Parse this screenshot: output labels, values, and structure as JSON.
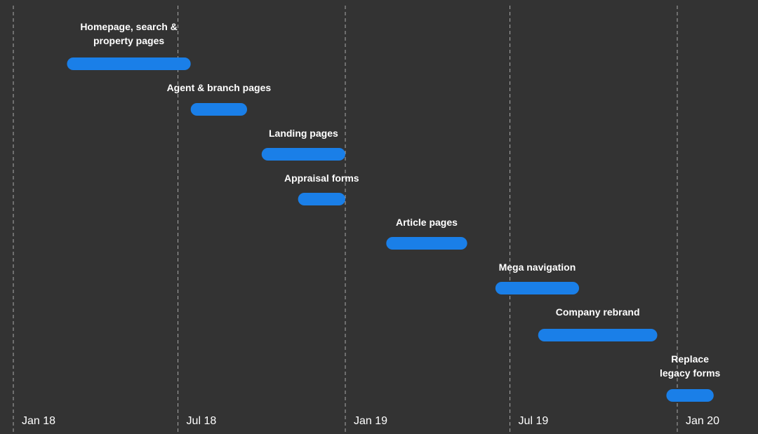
{
  "colors": {
    "background": "#333333",
    "bar": "#1a7fe8",
    "gridline": "#cfcfcf",
    "text": "#ffffff"
  },
  "chart_data": {
    "type": "gantt",
    "title": "",
    "xlabel": "",
    "ylabel": "",
    "x_axis": {
      "type": "date",
      "range": [
        "2017-11-15",
        "2020-03-01"
      ],
      "ticks": [
        {
          "label": "Jan 18",
          "date": "2018-01-01"
        },
        {
          "label": "Jul 18",
          "date": "2018-07-01"
        },
        {
          "label": "Jan 19",
          "date": "2019-01-01"
        },
        {
          "label": "Jul 19",
          "date": "2019-07-01"
        },
        {
          "label": "Jan 20",
          "date": "2020-01-01"
        }
      ],
      "gridlines": "dashed vertical"
    },
    "tasks": [
      {
        "label": "Homepage, search & property pages",
        "start": "2018-03-01",
        "end": "2018-07-15"
      },
      {
        "label": "Agent & branch pages",
        "start": "2018-07-15",
        "end": "2018-09-15"
      },
      {
        "label": "Landing pages",
        "start": "2018-10-01",
        "end": "2019-01-01"
      },
      {
        "label": "Appraisal forms",
        "start": "2018-11-10",
        "end": "2019-01-01"
      },
      {
        "label": "Article pages",
        "start": "2019-02-15",
        "end": "2019-05-15"
      },
      {
        "label": "Mega navigation",
        "start": "2019-06-15",
        "end": "2019-09-15"
      },
      {
        "label": "Company rebrand",
        "start": "2019-08-01",
        "end": "2019-12-10"
      },
      {
        "label": "Replace legacy forms",
        "start": "2019-12-20",
        "end": "2020-02-10"
      }
    ]
  }
}
